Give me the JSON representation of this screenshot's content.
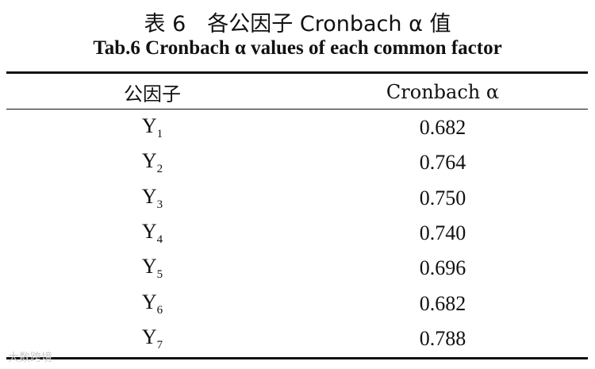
{
  "title": {
    "cn": "表 6　各公因子 Cronbach α 值",
    "en": "Tab.6 Cronbach α values of each common factor"
  },
  "table": {
    "header": [
      "公因子",
      "Cronbach α"
    ],
    "rows": [
      {
        "factor": "Y",
        "sub": "1",
        "alpha": "0.682"
      },
      {
        "factor": "Y",
        "sub": "2",
        "alpha": "0.764"
      },
      {
        "factor": "Y",
        "sub": "3",
        "alpha": "0.750"
      },
      {
        "factor": "Y",
        "sub": "4",
        "alpha": "0.740"
      },
      {
        "factor": "Y",
        "sub": "5",
        "alpha": "0.696"
      },
      {
        "factor": "Y",
        "sub": "6",
        "alpha": "0.682"
      },
      {
        "factor": "Y",
        "sub": "7",
        "alpha": "0.788"
      }
    ]
  },
  "watermark": "大数跨境"
}
